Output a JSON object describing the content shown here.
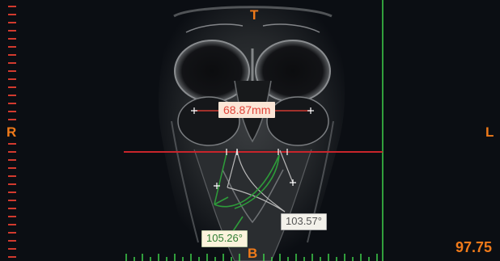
{
  "viewer": {
    "orientation": {
      "top": "T",
      "bottom": "B",
      "left": "R",
      "right": "L"
    },
    "zoom_readout": "97.75"
  },
  "measurements": {
    "distance": {
      "value_label": "68.87mm",
      "color": "#e0443a"
    },
    "angle_primary": {
      "value_label": "105.26°",
      "color": "#2e9b3a"
    },
    "angle_secondary": {
      "value_label": "103.57°",
      "color": "#b0b0b0"
    }
  },
  "colors": {
    "ruler": "#d23a2e",
    "crosshair_horizontal": "#c8242b",
    "crosshair_vertical": "#3ecf4a",
    "orientation_text": "#f07a1a"
  }
}
